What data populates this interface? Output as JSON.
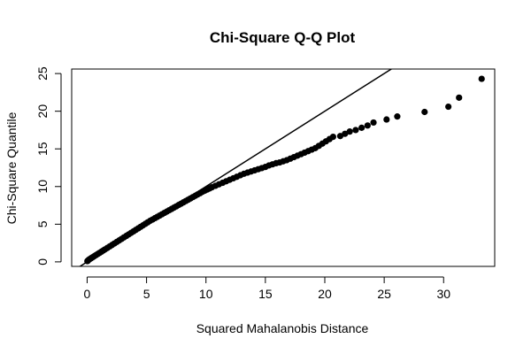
{
  "chart_data": {
    "type": "scatter",
    "title": "Chi-Square Q-Q Plot",
    "xlabel": "Squared Mahalanobis Distance",
    "ylabel": "Chi-Square Quantile",
    "xlim": [
      -1.3,
      34.3
    ],
    "ylim": [
      -0.6,
      25.6
    ],
    "xticks": [
      0,
      5,
      10,
      15,
      20,
      25,
      30
    ],
    "yticks": [
      0,
      5,
      10,
      15,
      20,
      25
    ],
    "grid": false,
    "legend": "none",
    "reference_line": {
      "slope": 1,
      "intercept": 0
    },
    "series": [
      {
        "color": "#000000",
        "marker": "filled-circle",
        "x": [
          0.02,
          0.06,
          0.12,
          0.2,
          0.3,
          0.4,
          0.5,
          0.6,
          0.75,
          0.9,
          1.05,
          1.2,
          1.35,
          1.5,
          1.7,
          1.9,
          2.1,
          2.3,
          2.5,
          2.7,
          2.9,
          3.1,
          3.3,
          3.5,
          3.7,
          3.9,
          4.1,
          4.3,
          4.5,
          4.7,
          4.9,
          5.1,
          5.3,
          5.5,
          5.7,
          5.9,
          6.1,
          6.3,
          6.5,
          6.7,
          6.9,
          7.1,
          7.3,
          7.5,
          7.7,
          7.9,
          8.1,
          8.3,
          8.5,
          8.7,
          8.9,
          9.1,
          9.3,
          9.5,
          9.7,
          9.9,
          10.1,
          10.3,
          10.5,
          10.8,
          11.1,
          11.4,
          11.7,
          12.0,
          12.3,
          12.6,
          12.9,
          13.2,
          13.5,
          13.8,
          14.1,
          14.4,
          14.7,
          15.0,
          15.3,
          15.6,
          15.9,
          16.2,
          16.5,
          16.8,
          17.1,
          17.4,
          17.7,
          18.0,
          18.3,
          18.6,
          18.9,
          19.2,
          19.5,
          19.8,
          20.1,
          20.4,
          20.7,
          21.3,
          21.7,
          22.1,
          22.6,
          23.1,
          23.6,
          24.1,
          25.2,
          26.1,
          28.4,
          30.4,
          31.3,
          33.2
        ],
        "y": [
          0.1,
          0.15,
          0.25,
          0.35,
          0.45,
          0.55,
          0.65,
          0.75,
          0.9,
          1.05,
          1.2,
          1.35,
          1.5,
          1.65,
          1.85,
          2.05,
          2.25,
          2.45,
          2.65,
          2.85,
          3.05,
          3.25,
          3.45,
          3.65,
          3.85,
          4.05,
          4.25,
          4.45,
          4.65,
          4.85,
          5.05,
          5.25,
          5.45,
          5.62,
          5.8,
          5.97,
          6.15,
          6.32,
          6.5,
          6.67,
          6.85,
          7.02,
          7.2,
          7.37,
          7.55,
          7.72,
          7.9,
          8.07,
          8.25,
          8.42,
          8.6,
          8.77,
          8.95,
          9.12,
          9.3,
          9.45,
          9.6,
          9.75,
          9.9,
          10.1,
          10.3,
          10.5,
          10.7,
          10.9,
          11.1,
          11.3,
          11.5,
          11.7,
          11.85,
          12.0,
          12.15,
          12.3,
          12.45,
          12.6,
          12.8,
          12.95,
          13.1,
          13.2,
          13.35,
          13.5,
          13.7,
          13.9,
          14.1,
          14.3,
          14.5,
          14.7,
          14.9,
          15.1,
          15.4,
          15.7,
          16.0,
          16.3,
          16.6,
          16.7,
          17.0,
          17.3,
          17.5,
          17.8,
          18.1,
          18.5,
          18.9,
          19.3,
          19.9,
          20.6,
          21.8,
          24.3
        ]
      }
    ]
  }
}
